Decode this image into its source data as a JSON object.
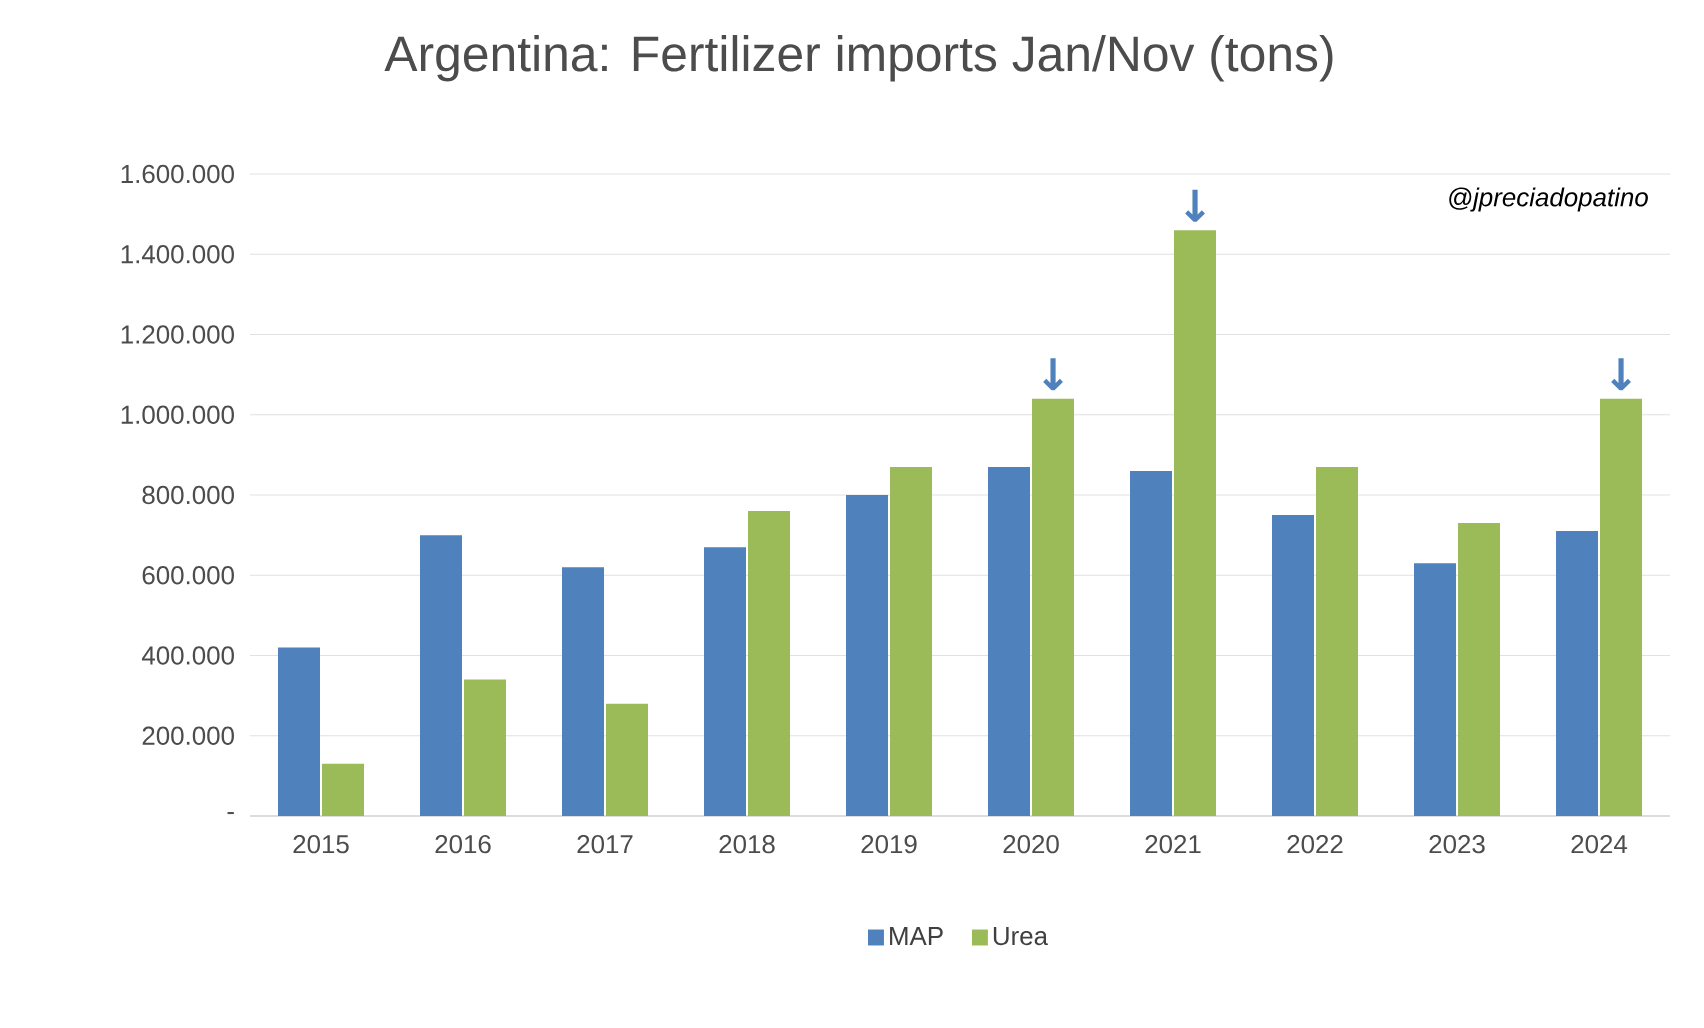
{
  "chart_data": {
    "type": "bar",
    "title": "Argentina: Fertilizer imports Jan/Nov (tons)",
    "categories": [
      "2015",
      "2016",
      "2017",
      "2018",
      "2019",
      "2020",
      "2021",
      "2022",
      "2023",
      "2024"
    ],
    "series": [
      {
        "name": "MAP",
        "color": "#4f81bd",
        "values": [
          420000,
          700000,
          620000,
          670000,
          800000,
          870000,
          860000,
          750000,
          630000,
          710000
        ]
      },
      {
        "name": "Urea",
        "color": "#9bbb59",
        "values": [
          130000,
          340000,
          280000,
          760000,
          870000,
          1040000,
          1460000,
          870000,
          730000,
          1040000
        ]
      }
    ],
    "ylim": [
      0,
      1600000
    ],
    "yticks": [
      {
        "value": 0,
        "label": "-"
      },
      {
        "value": 200000,
        "label": "200.000"
      },
      {
        "value": 400000,
        "label": "400.000"
      },
      {
        "value": 600000,
        "label": "600.000"
      },
      {
        "value": 800000,
        "label": "800.000"
      },
      {
        "value": 1000000,
        "label": "1.000.000"
      },
      {
        "value": 1200000,
        "label": "1.200.000"
      },
      {
        "value": 1400000,
        "label": "1.400.000"
      },
      {
        "value": 1600000,
        "label": "1.600.000"
      }
    ],
    "grid": "y",
    "legend": "bottom",
    "annotations": [
      "@jpreciadopatino",
      {
        "text": "↓",
        "x": "2020",
        "y": 1040000
      },
      {
        "text": "↓",
        "x": "2021",
        "y": 1460000
      },
      {
        "text": "↓",
        "x": "2024",
        "y": 1040000
      }
    ]
  }
}
